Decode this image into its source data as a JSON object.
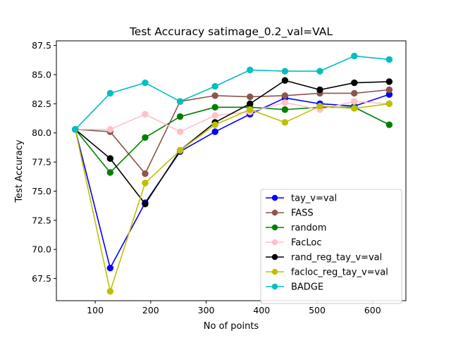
{
  "chart_data": {
    "type": "line",
    "title": "Test Accuracy satimage_0.2_val=VAL",
    "xlabel": "No of points",
    "ylabel": "Test Accuracy",
    "xlim": [
      30,
      660
    ],
    "ylim": [
      65.6,
      87.9
    ],
    "xticks": [
      100,
      200,
      300,
      400,
      500,
      600
    ],
    "yticks": [
      67.5,
      70.0,
      72.5,
      75.0,
      77.5,
      80.0,
      82.5,
      85.0,
      87.5
    ],
    "ytick_labels": [
      "67.5",
      "70.0",
      "72.5",
      "75.0",
      "77.5",
      "80.0",
      "82.5",
      "85.0",
      "87.5"
    ],
    "grid": false,
    "legend_position": "lower-right",
    "x": [
      64,
      127,
      190,
      253,
      316,
      379,
      442,
      505,
      567,
      630
    ],
    "series": [
      {
        "name": "tay_v=val",
        "color": "#0000ff",
        "values": [
          80.3,
          68.4,
          74.0,
          78.4,
          80.1,
          81.6,
          83.0,
          82.5,
          82.3,
          83.3
        ]
      },
      {
        "name": "FASS",
        "color": "#8c564b",
        "values": [
          80.3,
          80.1,
          76.5,
          82.7,
          83.2,
          83.1,
          83.2,
          83.4,
          83.4,
          83.7
        ]
      },
      {
        "name": "random",
        "color": "#008000",
        "values": [
          80.3,
          76.6,
          79.6,
          81.4,
          82.2,
          82.2,
          82.0,
          82.2,
          82.2,
          80.7
        ]
      },
      {
        "name": "FacLoc",
        "color": "#ffc0cb",
        "values": [
          80.3,
          80.3,
          81.6,
          80.1,
          81.5,
          81.8,
          82.6,
          82.0,
          82.7,
          82.5
        ]
      },
      {
        "name": "rand_reg_tay_v=val",
        "color": "#000000",
        "values": [
          80.3,
          77.8,
          73.9,
          78.5,
          80.9,
          82.5,
          84.5,
          83.7,
          84.3,
          84.4
        ]
      },
      {
        "name": "facloc_reg_tay_v=val",
        "color": "#bfbf00",
        "values": [
          80.3,
          66.4,
          75.7,
          78.5,
          80.7,
          82.0,
          80.9,
          82.3,
          82.1,
          82.5
        ]
      },
      {
        "name": "BADGE",
        "color": "#00bfbf",
        "values": [
          80.3,
          83.4,
          84.3,
          82.7,
          84.0,
          85.4,
          85.3,
          85.3,
          86.6,
          86.3
        ]
      }
    ]
  }
}
